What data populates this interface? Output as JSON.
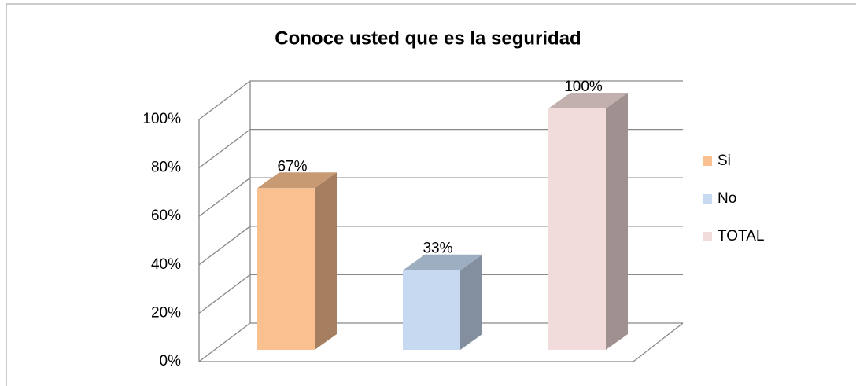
{
  "chart_data": {
    "type": "bar",
    "title": "Conoce usted que es la seguridad",
    "categories": [
      null
    ],
    "series": [
      {
        "name": "Si",
        "color": "#fac090",
        "values": [
          67
        ],
        "value_labels": [
          "67%"
        ]
      },
      {
        "name": "No",
        "color": "#c6d9f1",
        "values": [
          33
        ],
        "value_labels": [
          "33%"
        ]
      },
      {
        "name": "TOTAL",
        "color": "#f2dcdb",
        "values": [
          100
        ],
        "value_labels": [
          "100%"
        ]
      }
    ],
    "ylim": [
      0,
      100
    ],
    "yticks": [
      {
        "value": 0,
        "label": "0%"
      },
      {
        "value": 20,
        "label": "20%"
      },
      {
        "value": 40,
        "label": "40%"
      },
      {
        "value": 60,
        "label": "60%"
      },
      {
        "value": 80,
        "label": "80%"
      },
      {
        "value": 100,
        "label": "100%"
      }
    ],
    "grid": true,
    "legend": "right"
  }
}
